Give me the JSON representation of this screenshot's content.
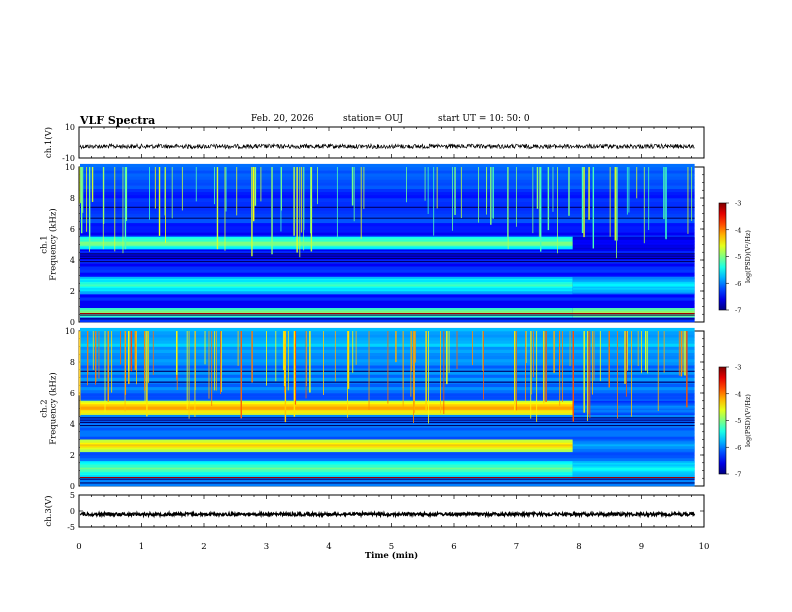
{
  "header": {
    "title": "VLF Spectra",
    "date": "Feb. 20, 2026",
    "station": "station= OUJ",
    "start": "start UT =   10: 50: 0"
  },
  "chart_data": [
    {
      "type": "line",
      "name": "ch1-waveform",
      "ylabel": "ch.1(V)",
      "ylim": [
        -10,
        10
      ],
      "yticks": [
        "10",
        "-10"
      ],
      "xlim": [
        0,
        9.85
      ],
      "baseline": -2.5
    },
    {
      "type": "heatmap",
      "name": "ch1-spectrogram",
      "ylabel": "ch.1\nFrequency (kHz)",
      "ylim": [
        0,
        10
      ],
      "yticks": [
        "0",
        "2",
        "4",
        "6",
        "8",
        "10"
      ],
      "xlim": [
        0,
        9.85
      ],
      "colorbar": {
        "label": "log(PSD)(V²/Hz)",
        "range": [
          -7,
          -3
        ],
        "ticks": [
          "-3",
          "-4",
          "-5",
          "-6",
          "-7"
        ]
      },
      "bands": [
        {
          "f_low": 4.7,
          "f_high": 5.4,
          "level_before": -5.0,
          "level_after": -6.4,
          "t_change": 7.9
        },
        {
          "f_low": 1.8,
          "f_high": 2.9,
          "level_before": -5.3,
          "level_after": -5.6,
          "t_change": 7.9
        },
        {
          "f_low": 0.3,
          "f_high": 0.8,
          "level_before": -4.8,
          "level_after": -4.8,
          "t_change": 7.9
        }
      ]
    },
    {
      "type": "heatmap",
      "name": "ch2-spectrogram",
      "ylabel": "ch.2\nFrequency (kHz)",
      "ylim": [
        0,
        10
      ],
      "yticks": [
        "0",
        "2",
        "4",
        "6",
        "8",
        "10"
      ],
      "xlim": [
        0,
        9.85
      ],
      "colorbar": {
        "label": "log(PSD)(V²/Hz)",
        "range": [
          -7,
          -3
        ],
        "ticks": [
          "-3",
          "-4",
          "-5",
          "-6",
          "-7"
        ]
      },
      "bands": [
        {
          "f_low": 4.6,
          "f_high": 5.4,
          "level_before": -4.1,
          "level_after": -5.9,
          "t_change": 7.9
        },
        {
          "f_low": 2.2,
          "f_high": 3.0,
          "level_before": -4.3,
          "level_after": -5.8,
          "t_change": 7.9
        },
        {
          "f_low": 0.5,
          "f_high": 1.6,
          "level_before": -5.1,
          "level_after": -5.5,
          "t_change": 7.9
        }
      ]
    },
    {
      "type": "line",
      "name": "ch3-waveform",
      "ylabel": "ch.3(V)",
      "ylim": [
        -5,
        5
      ],
      "yticks": [
        "5",
        "0",
        "-5"
      ],
      "xlim": [
        0,
        9.85
      ],
      "baseline": -1.0
    }
  ],
  "xaxis": {
    "label": "Time (min)",
    "ticks": [
      "0",
      "1",
      "2",
      "3",
      "4",
      "5",
      "6",
      "7",
      "8",
      "9",
      "10"
    ],
    "range": [
      0,
      10
    ]
  },
  "colors": {
    "data_edge_min": "#000080",
    "max": "#800000"
  }
}
